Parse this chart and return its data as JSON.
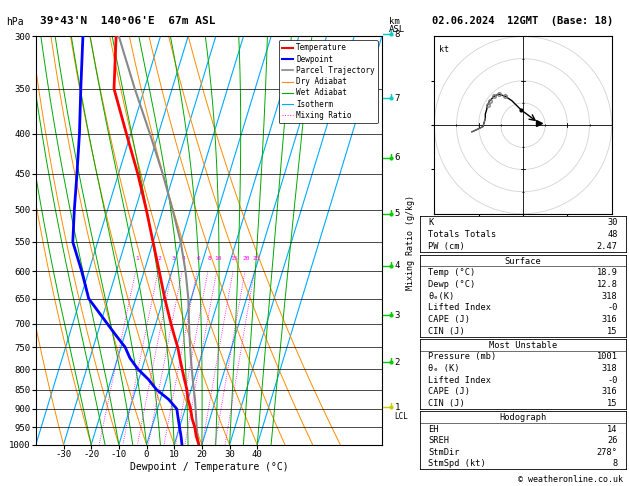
{
  "title_left": "39°43'N  140°06'E  67m ASL",
  "title_right": "02.06.2024  12GMT  (Base: 18)",
  "xlabel": "Dewpoint / Temperature (°C)",
  "pmin": 300,
  "pmax": 1000,
  "tmin": -40,
  "tmax": 40,
  "skew": 45,
  "p_ticks": [
    300,
    350,
    400,
    450,
    500,
    550,
    600,
    650,
    700,
    750,
    800,
    850,
    900,
    950,
    1000
  ],
  "t_ticks": [
    -30,
    -20,
    -10,
    0,
    10,
    20,
    30,
    40
  ],
  "km_ticks": [
    1,
    2,
    3,
    4,
    5,
    6,
    7,
    8
  ],
  "km_pressures": [
    895,
    784,
    683,
    590,
    506,
    429,
    360,
    298
  ],
  "km_colors": [
    "#cccc00",
    "#00cc00",
    "#00cc00",
    "#00cc00",
    "#00cc00",
    "#00cc00",
    "#00cccc",
    "#00cccc"
  ],
  "mixing_ratios": [
    1,
    2,
    3,
    4,
    6,
    8,
    10,
    15,
    20,
    25
  ],
  "temp_p": [
    1000,
    975,
    950,
    925,
    900,
    875,
    850,
    825,
    800,
    775,
    750,
    725,
    700,
    650,
    600,
    550,
    500,
    450,
    400,
    350,
    300
  ],
  "temp_t": [
    18.9,
    17.0,
    15.5,
    13.5,
    12.0,
    10.0,
    8.5,
    6.5,
    4.5,
    2.5,
    0.5,
    -2.0,
    -4.5,
    -9.5,
    -14.5,
    -20.0,
    -26.0,
    -33.0,
    -41.5,
    -51.0,
    -56.0
  ],
  "dewp_p": [
    1000,
    975,
    950,
    925,
    900,
    875,
    850,
    825,
    800,
    775,
    750,
    725,
    700,
    650,
    600,
    550,
    500,
    450,
    400,
    350,
    300
  ],
  "dewp_t": [
    12.8,
    11.5,
    10.0,
    8.5,
    7.0,
    3.0,
    -2.5,
    -6.5,
    -11.5,
    -15.5,
    -18.5,
    -23.0,
    -27.5,
    -37.0,
    -42.5,
    -49.0,
    -52.0,
    -55.0,
    -58.5,
    -63.0,
    -68.0
  ],
  "parcel_p": [
    1000,
    975,
    950,
    925,
    900,
    875,
    850,
    825,
    800,
    775,
    750,
    725,
    700,
    650,
    600,
    550,
    500,
    450,
    400,
    350,
    300
  ],
  "parcel_t": [
    18.9,
    17.5,
    16.2,
    15.0,
    13.8,
    12.5,
    11.0,
    9.5,
    8.0,
    6.5,
    5.0,
    3.5,
    2.0,
    -1.0,
    -5.0,
    -10.0,
    -16.5,
    -24.0,
    -33.0,
    -43.5,
    -55.0
  ],
  "lcl_p": 920,
  "color_temp": "#ff0000",
  "color_dewp": "#0000ff",
  "color_parcel": "#888888",
  "color_dry": "#ff8c00",
  "color_wet": "#00aa00",
  "color_iso": "#00aaff",
  "color_mr": "#ff00ff",
  "hodograph_u": [
    -0.5,
    -1.5,
    -2.5,
    -4.0,
    -5.5,
    -6.5,
    -7.5,
    -8.0,
    -8.2,
    -8.5,
    -8.5,
    -8.8,
    -9.0,
    -10.0,
    -11.5
  ],
  "hodograph_v": [
    3.5,
    4.5,
    5.5,
    6.5,
    7.0,
    6.5,
    5.5,
    4.5,
    3.5,
    2.5,
    1.5,
    0.5,
    -0.3,
    -0.8,
    -1.5
  ],
  "storm_u": 3.5,
  "storm_v": 0.5,
  "stats_K": 30,
  "stats_TT": 48,
  "stats_PW": "2.47",
  "stats_SfcTemp": "18.9",
  "stats_SfcDewp": "12.8",
  "stats_SfcThE": 318,
  "stats_SfcLI": "-0",
  "stats_SfcCAPE": 316,
  "stats_SfcCIN": 15,
  "stats_MUPres": 1001,
  "stats_MUThE": 318,
  "stats_MULI": "-0",
  "stats_MUCAPE": 316,
  "stats_MUCIN": 15,
  "stats_EH": 14,
  "stats_SREH": 26,
  "stats_StmDir": "278°",
  "stats_StmSpd": 8,
  "copyright": "© weatheronline.co.uk"
}
